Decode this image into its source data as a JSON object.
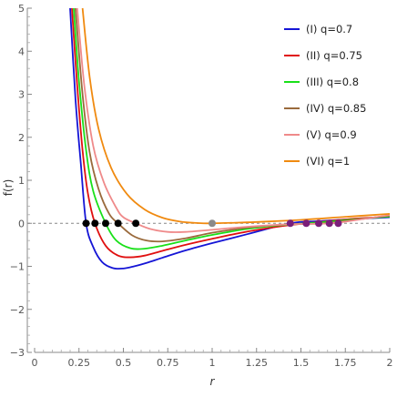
{
  "chart_data": {
    "type": "line",
    "title": "",
    "xlabel": "r",
    "ylabel": "f(r)",
    "xlim": [
      0,
      2
    ],
    "ylim": [
      -3,
      5
    ],
    "x_ticks": [
      0,
      0.25,
      0.5,
      0.75,
      1,
      1.25,
      1.5,
      1.75,
      2
    ],
    "x_tick_labels": [
      "0",
      "0.25",
      "0.5",
      "0.75",
      "1",
      "1.25",
      "1.5",
      "1.75",
      "2"
    ],
    "y_ticks": [
      -3,
      -2,
      -1,
      0,
      1,
      2,
      3,
      4,
      5
    ],
    "y_tick_labels": [
      "−3",
      "−2",
      "−1",
      "0",
      "1",
      "2",
      "3",
      "4",
      "5"
    ],
    "grid": false,
    "reference_line": {
      "y": 0,
      "style": "dashed"
    },
    "legend_position": "top-right",
    "series": [
      {
        "name": "(I)  q=0.7",
        "color": "#1515d6",
        "x": [
          0.2,
          0.23,
          0.26,
          0.29,
          0.33,
          0.38,
          0.44,
          0.5,
          0.56,
          0.63,
          0.72,
          0.85,
          1.0,
          1.2,
          1.44,
          1.6,
          1.8,
          2.0
        ],
        "y": [
          5.0,
          2.9,
          1.4,
          0.0,
          -0.55,
          -0.9,
          -1.04,
          -1.05,
          -1.0,
          -0.92,
          -0.8,
          -0.63,
          -0.46,
          -0.25,
          0.0,
          0.05,
          0.1,
          0.14
        ]
      },
      {
        "name": "(II)  q=0.75",
        "color": "#e01010",
        "x": [
          0.21,
          0.24,
          0.27,
          0.3,
          0.34,
          0.4,
          0.47,
          0.54,
          0.62,
          0.72,
          0.85,
          1.0,
          1.2,
          1.4,
          1.53,
          1.7,
          1.85,
          2.0
        ],
        "y": [
          5.0,
          3.2,
          1.7,
          0.7,
          0.0,
          -0.52,
          -0.75,
          -0.79,
          -0.75,
          -0.64,
          -0.5,
          -0.36,
          -0.19,
          -0.06,
          0.0,
          0.07,
          0.12,
          0.16
        ]
      },
      {
        "name": "(III)  q=0.8",
        "color": "#19e019",
        "x": [
          0.22,
          0.25,
          0.29,
          0.33,
          0.4,
          0.46,
          0.54,
          0.62,
          0.72,
          0.85,
          1.0,
          1.2,
          1.4,
          1.6,
          1.8,
          2.0
        ],
        "y": [
          5.0,
          3.3,
          1.7,
          0.75,
          0.0,
          -0.4,
          -0.58,
          -0.59,
          -0.52,
          -0.4,
          -0.27,
          -0.13,
          -0.04,
          0.02,
          0.09,
          0.16
        ]
      },
      {
        "name": "(IV)  q=0.85",
        "color": "#9a6a3c",
        "x": [
          0.23,
          0.27,
          0.31,
          0.36,
          0.42,
          0.47,
          0.55,
          0.63,
          0.72,
          0.85,
          1.0,
          1.2,
          1.4,
          1.63,
          1.8,
          2.0
        ],
        "y": [
          5.0,
          3.0,
          1.65,
          0.8,
          0.22,
          0.0,
          -0.28,
          -0.4,
          -0.42,
          -0.35,
          -0.22,
          -0.1,
          -0.03,
          0.0,
          0.08,
          0.18
        ]
      },
      {
        "name": "(V)  q=0.9",
        "color": "#ef8a8a",
        "x": [
          0.24,
          0.28,
          0.33,
          0.39,
          0.46,
          0.5,
          0.57,
          0.65,
          0.75,
          0.85,
          1.0,
          1.2,
          1.45,
          1.67,
          1.85,
          2.0
        ],
        "y": [
          5.0,
          3.2,
          1.8,
          0.95,
          0.36,
          0.14,
          0.0,
          -0.13,
          -0.2,
          -0.2,
          -0.15,
          -0.08,
          -0.02,
          0.0,
          0.1,
          0.19
        ]
      },
      {
        "name": "(VI)  q=1",
        "color": "#f08a10",
        "x": [
          0.27,
          0.31,
          0.36,
          0.43,
          0.52,
          0.62,
          0.72,
          0.82,
          0.9,
          0.95,
          1.0,
          1.1,
          1.25,
          1.5,
          1.75,
          2.0
        ],
        "y": [
          5.0,
          3.4,
          2.2,
          1.3,
          0.68,
          0.32,
          0.13,
          0.04,
          0.01,
          0.0,
          0.0,
          0.01,
          0.03,
          0.08,
          0.15,
          0.22
        ]
      }
    ],
    "points": [
      {
        "x": 0.29,
        "y": 0,
        "color": "#000000"
      },
      {
        "x": 0.34,
        "y": 0,
        "color": "#000000"
      },
      {
        "x": 0.4,
        "y": 0,
        "color": "#000000"
      },
      {
        "x": 0.47,
        "y": 0,
        "color": "#000000"
      },
      {
        "x": 0.57,
        "y": 0,
        "color": "#000000"
      },
      {
        "x": 1.0,
        "y": 0,
        "color": "#8a8a8a"
      },
      {
        "x": 1.44,
        "y": 0,
        "color": "#7a1f7a"
      },
      {
        "x": 1.53,
        "y": 0,
        "color": "#7a1f7a"
      },
      {
        "x": 1.6,
        "y": 0,
        "color": "#7a1f7a"
      },
      {
        "x": 1.66,
        "y": 0,
        "color": "#7a1f7a"
      },
      {
        "x": 1.71,
        "y": 0,
        "color": "#7a1f7a"
      }
    ]
  }
}
